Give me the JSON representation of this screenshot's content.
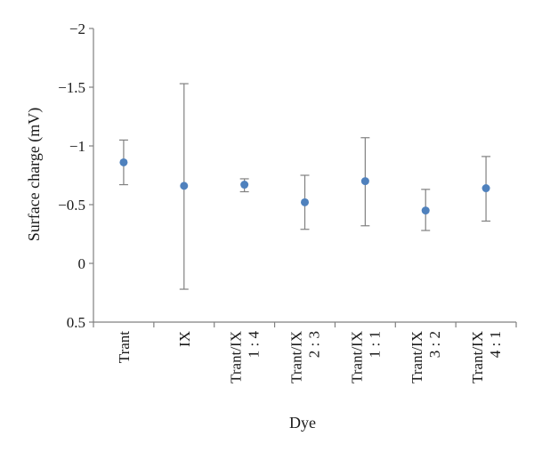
{
  "chart_data": {
    "type": "scatter",
    "title": "",
    "xlabel": "Dye",
    "ylabel": "Surface charge (mV)",
    "y_axis_inverted": true,
    "ylim": [
      -2,
      0.5
    ],
    "yticks": [
      {
        "value": -2,
        "label": "−2"
      },
      {
        "value": -1.5,
        "label": "−1.5"
      },
      {
        "value": -1,
        "label": "−1"
      },
      {
        "value": -0.5,
        "label": "−0.5"
      },
      {
        "value": 0,
        "label": "0"
      },
      {
        "value": 0.5,
        "label": "0.5"
      }
    ],
    "grid": false,
    "legend": "none",
    "categories": [
      [
        "Trant"
      ],
      [
        "IX"
      ],
      [
        "Trant/IX",
        "1 : 4"
      ],
      [
        "Trant/IX",
        "2 : 3"
      ],
      [
        "Trant/IX",
        "1 : 1"
      ],
      [
        "Trant/IX",
        "3 : 2"
      ],
      [
        "Trant/IX",
        "4 : 1"
      ]
    ],
    "series": [
      {
        "values": [
          -0.86,
          -0.66,
          -0.67,
          -0.52,
          -0.7,
          -0.45,
          -0.64
        ],
        "error_low": [
          -0.67,
          0.22,
          -0.61,
          -0.29,
          -0.32,
          -0.28,
          -0.36
        ],
        "error_high": [
          -1.05,
          -1.53,
          -0.72,
          -0.75,
          -1.07,
          -0.63,
          -0.91
        ],
        "color": "#4f81bd"
      }
    ],
    "axis_color": "#808080",
    "errorbar_color": "#808080"
  }
}
